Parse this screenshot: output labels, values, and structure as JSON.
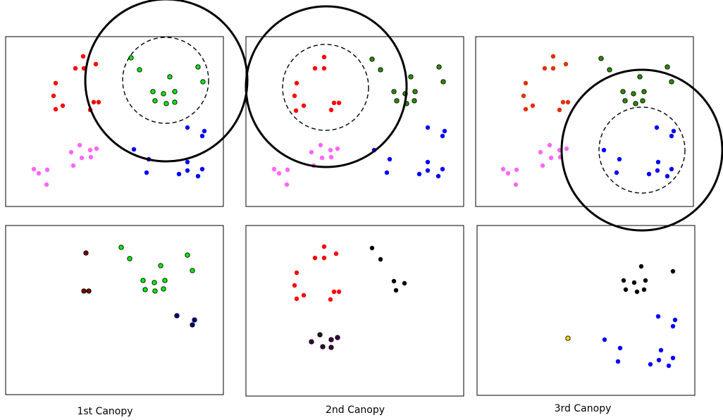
{
  "captions": [
    "1st Canopy",
    "2nd Canopy",
    "3rd Canopy"
  ],
  "colors": {
    "red": "#ff0000",
    "green": "#00ee00",
    "blue": "#0000ff",
    "pink": "#ff66ff",
    "black": "#000000",
    "dark_green": "#2e8b00",
    "orange_red": "#e03000",
    "dark_purple": "#3a0040",
    "yellow": "#ffd800",
    "dark_red": "#7a0000",
    "navy": "#000080"
  }
}
